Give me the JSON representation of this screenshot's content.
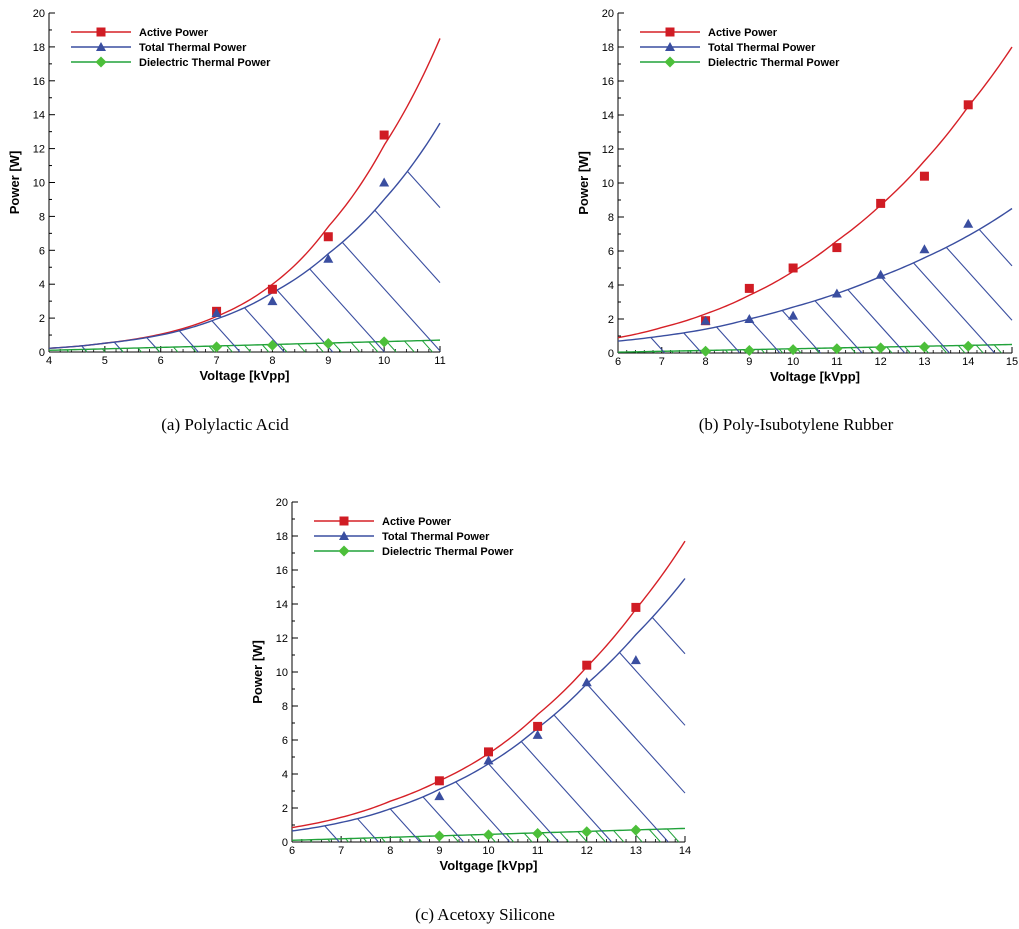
{
  "colors": {
    "active": "#d62027",
    "active_marker": "#d01c24",
    "thermal": "#3a4ea0",
    "dielectric": "#21a23a",
    "dielectric_marker": "#4cbf3a"
  },
  "chart_data": [
    {
      "type": "line",
      "caption": "(a) Polylactic Acid",
      "xlabel": "Voltage [kVpp]",
      "ylabel": "Power [W]",
      "xlim": [
        4,
        11
      ],
      "ylim": [
        0,
        20
      ],
      "xticks": [
        4,
        5,
        6,
        7,
        8,
        9,
        10,
        11
      ],
      "yticks": [
        0,
        2,
        4,
        6,
        8,
        10,
        12,
        14,
        16,
        18,
        20
      ],
      "hatched_regions": true,
      "legend_position": "top-left",
      "series": [
        {
          "name": "Active Power",
          "marker": "square",
          "x": [
            7,
            8,
            9,
            10
          ],
          "y": [
            2.4,
            3.7,
            6.8,
            12.8
          ],
          "fit": {
            "model": "exp",
            "x": [
              4,
              5,
              6,
              7,
              8,
              9,
              10,
              11
            ],
            "y": [
              0.22,
              0.52,
              1.05,
              2.1,
              4.0,
              7.4,
              12.2,
              18.5
            ]
          }
        },
        {
          "name": "Total Thermal Power",
          "marker": "triangle",
          "x": [
            7,
            8,
            9,
            10
          ],
          "y": [
            2.3,
            3.0,
            5.5,
            10.0
          ],
          "fit": {
            "model": "exp",
            "x": [
              4,
              5,
              6,
              7,
              8,
              9,
              10,
              11
            ],
            "y": [
              0.22,
              0.52,
              1.0,
              1.95,
              3.5,
              5.8,
              9.0,
              13.5
            ]
          }
        },
        {
          "name": "Dielectric Thermal Power",
          "marker": "diamond",
          "x": [
            7,
            8,
            9,
            10
          ],
          "y": [
            0.3,
            0.4,
            0.5,
            0.6
          ],
          "fit": {
            "model": "linear",
            "x": [
              4,
              11
            ],
            "y": [
              0.1,
              0.7
            ]
          }
        }
      ]
    },
    {
      "type": "line",
      "caption": "(b) Poly-Isubotylene Rubber",
      "xlabel": "Voltage [kVpp]",
      "ylabel": "Power [W]",
      "xlim": [
        6,
        15
      ],
      "ylim": [
        0,
        20
      ],
      "xticks": [
        6,
        7,
        8,
        9,
        10,
        11,
        12,
        13,
        14,
        15
      ],
      "yticks": [
        0,
        2,
        4,
        6,
        8,
        10,
        12,
        14,
        16,
        18,
        20
      ],
      "hatched_regions": true,
      "legend_position": "top-left",
      "series": [
        {
          "name": "Active Power",
          "marker": "square",
          "x": [
            8,
            9,
            10,
            11,
            12,
            13,
            14
          ],
          "y": [
            1.9,
            3.8,
            5.0,
            6.2,
            8.8,
            10.4,
            14.6
          ],
          "fit": {
            "model": "exp",
            "x": [
              6,
              7,
              8,
              9,
              10,
              11,
              12,
              13,
              14,
              15
            ],
            "y": [
              0.9,
              1.5,
              2.3,
              3.4,
              4.8,
              6.6,
              8.7,
              11.3,
              14.5,
              18.0
            ]
          }
        },
        {
          "name": "Total Thermal Power",
          "marker": "triangle",
          "x": [
            8,
            9,
            10,
            11,
            12,
            13,
            14
          ],
          "y": [
            1.9,
            2.0,
            2.2,
            3.5,
            4.6,
            6.1,
            7.6
          ],
          "fit": {
            "model": "exp",
            "x": [
              6,
              7,
              8,
              9,
              10,
              11,
              12,
              13,
              14,
              15
            ],
            "y": [
              0.7,
              1.0,
              1.4,
              2.0,
              2.7,
              3.5,
              4.5,
              5.6,
              6.9,
              8.5
            ]
          }
        },
        {
          "name": "Dielectric Thermal Power",
          "marker": "diamond",
          "x": [
            8,
            9,
            10,
            11,
            12,
            13,
            14
          ],
          "y": [
            0.1,
            0.15,
            0.2,
            0.25,
            0.3,
            0.35,
            0.4
          ],
          "fit": {
            "model": "linear",
            "x": [
              6,
              15
            ],
            "y": [
              0.05,
              0.5
            ]
          }
        }
      ]
    },
    {
      "type": "line",
      "caption": "(c) Acetoxy Silicone",
      "xlabel": "Voltgage [kVpp]",
      "ylabel": "Power [W]",
      "xlim": [
        6,
        14
      ],
      "ylim": [
        0,
        20
      ],
      "xticks": [
        6,
        7,
        8,
        9,
        10,
        11,
        12,
        13,
        14
      ],
      "yticks": [
        0,
        2,
        4,
        6,
        8,
        10,
        12,
        14,
        16,
        18,
        20
      ],
      "hatched_regions": true,
      "legend_position": "top-left",
      "series": [
        {
          "name": "Active Power",
          "marker": "square",
          "x": [
            9,
            10,
            11,
            12,
            13
          ],
          "y": [
            3.6,
            5.3,
            6.8,
            10.4,
            13.8
          ],
          "fit": {
            "model": "exp",
            "x": [
              6,
              7,
              8,
              9,
              10,
              11,
              12,
              13,
              14
            ],
            "y": [
              0.85,
              1.45,
              2.4,
              3.6,
              5.2,
              7.5,
              10.3,
              13.7,
              17.7
            ]
          }
        },
        {
          "name": "Total Thermal Power",
          "marker": "triangle",
          "x": [
            9,
            10,
            11,
            12,
            13
          ],
          "y": [
            2.7,
            4.8,
            6.3,
            9.4,
            10.7
          ],
          "fit": {
            "model": "exp",
            "x": [
              6,
              7,
              8,
              9,
              10,
              11,
              12,
              13,
              14
            ],
            "y": [
              0.65,
              1.15,
              1.95,
              3.1,
              4.6,
              6.7,
              9.3,
              12.2,
              15.5
            ]
          }
        },
        {
          "name": "Dielectric Thermal Power",
          "marker": "diamond",
          "x": [
            9,
            10,
            11,
            12,
            13
          ],
          "y": [
            0.35,
            0.42,
            0.5,
            0.6,
            0.7
          ],
          "fit": {
            "model": "linear",
            "x": [
              6,
              14
            ],
            "y": [
              0.1,
              0.8
            ]
          }
        }
      ]
    }
  ]
}
